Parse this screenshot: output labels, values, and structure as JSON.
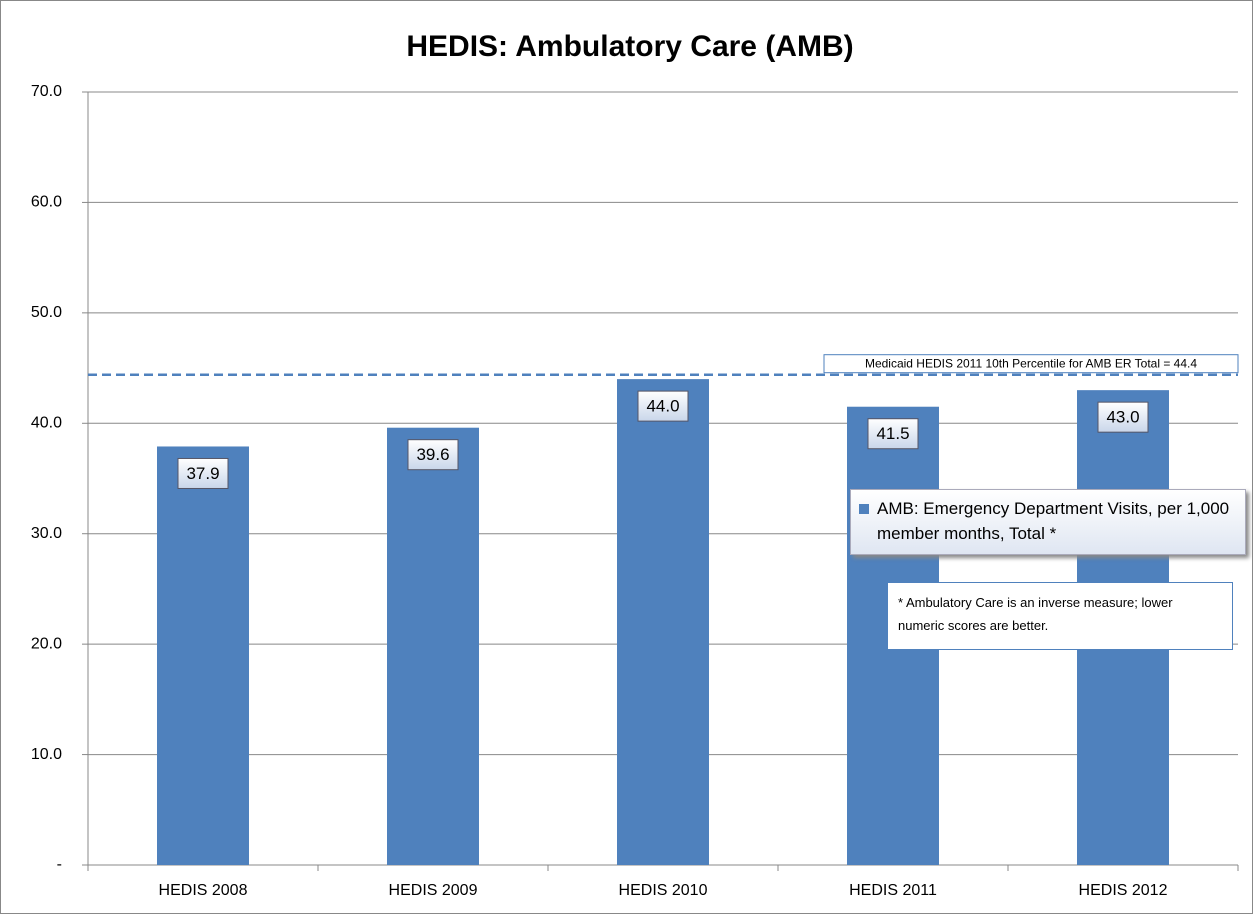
{
  "chart_data": {
    "type": "bar",
    "title": "HEDIS: Ambulatory Care (AMB)",
    "categories": [
      "HEDIS 2008",
      "HEDIS 2009",
      "HEDIS 2010",
      "HEDIS 2011",
      "HEDIS 2012"
    ],
    "series": [
      {
        "name": "AMB: Emergency Department Visits, per 1,000 member months, Total *",
        "color": "#4f81bd",
        "values": [
          37.9,
          39.6,
          44.0,
          41.5,
          43.0
        ],
        "value_labels": [
          "37.9",
          "39.6",
          "44.0",
          "41.5",
          "43.0"
        ]
      }
    ],
    "ylim": [
      0,
      70
    ],
    "yticks": [
      {
        "value": 0,
        "label": "-"
      },
      {
        "value": 10,
        "label": "10.0"
      },
      {
        "value": 20,
        "label": "20.0"
      },
      {
        "value": 30,
        "label": "30.0"
      },
      {
        "value": 40,
        "label": "40.0"
      },
      {
        "value": 50,
        "label": "50.0"
      },
      {
        "value": 60,
        "label": "60.0"
      },
      {
        "value": 70,
        "label": "70.0"
      }
    ],
    "grid": true,
    "reference_line": {
      "value": 44.4,
      "label": "Medicaid HEDIS 2011 10th Percentile for AMB ER Total = 44.4",
      "color": "#4f81bd"
    },
    "annotation": "* Ambulatory Care is an inverse measure; lower numeric scores are better."
  }
}
